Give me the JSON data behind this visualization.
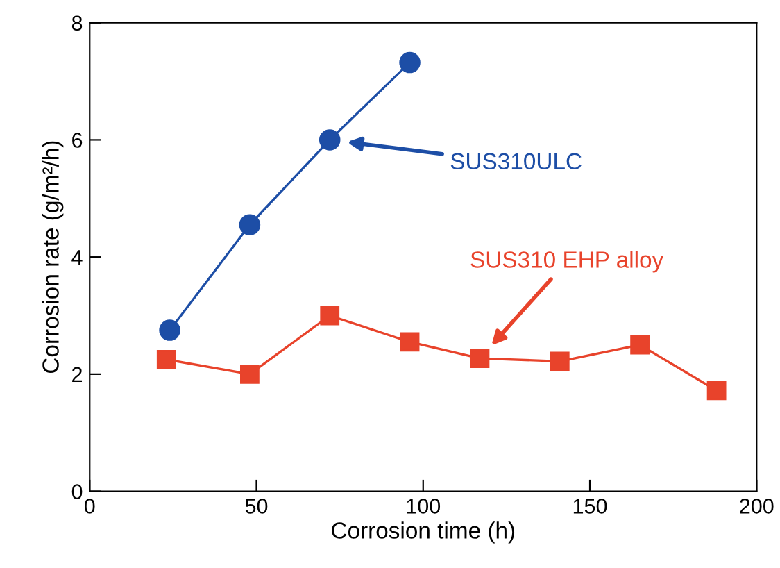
{
  "chart_data": {
    "type": "line",
    "xlabel": "Corrosion time (h)",
    "ylabel": "Corrosion rate (g/m²/h)",
    "xlim": [
      0,
      200
    ],
    "xticks": [
      0,
      50,
      100,
      150,
      200
    ],
    "ylim": [
      0,
      8
    ],
    "yticks": [
      0,
      2,
      4,
      6,
      8
    ],
    "grid": false,
    "legend": "right",
    "series": [
      {
        "name": "SUS310ULC",
        "color": "#1d4ea6",
        "marker": "circle",
        "x": [
          24,
          48,
          72,
          96
        ],
        "values": [
          2.75,
          4.55,
          6.0,
          7.32
        ]
      },
      {
        "name": "SUS310 EHP alloy",
        "color": "#e8432b",
        "marker": "square",
        "x": [
          23,
          48,
          72,
          96,
          117,
          141,
          165,
          188
        ],
        "values": [
          2.25,
          2.0,
          3.0,
          2.55,
          2.27,
          2.22,
          2.5,
          1.72
        ]
      }
    ]
  }
}
